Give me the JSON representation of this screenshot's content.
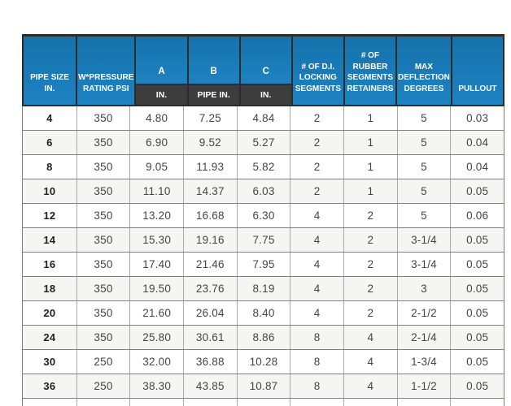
{
  "page": {
    "background": "#ffffff"
  },
  "table": {
    "colors": {
      "header_blue_top": "#1572ab",
      "header_blue_bottom": "#1e82c2",
      "header_dark": "#3d3d3d",
      "header_border": "#2c2c2c",
      "header_text": "#ffffff",
      "row_line": "#808080",
      "col_line": "#a9a9a9",
      "alt_row_bg": "#f5f5f4",
      "data_text": "#454545",
      "first_col_text": "#1f1f1f"
    },
    "columns": [
      {
        "id": "pipe-size",
        "lines": [
          "PIPE SIZE IN."
        ]
      },
      {
        "id": "pressure-rating",
        "lines": [
          "W*PRESSURE",
          "RATING PSI"
        ]
      },
      {
        "id": "a",
        "lines": [
          "A"
        ],
        "sub": "IN."
      },
      {
        "id": "b",
        "lines": [
          "B"
        ],
        "sub": "PIPE IN."
      },
      {
        "id": "c",
        "lines": [
          "C"
        ],
        "sub": "IN."
      },
      {
        "id": "di-locking-segments",
        "lines": [
          "# OF D.I.",
          "LOCKING",
          "SEGMENTS"
        ]
      },
      {
        "id": "rubber-segment-retainers",
        "lines": [
          "# OF RUBBER",
          "SEGMENTS",
          "RETAINERS"
        ]
      },
      {
        "id": "max-deflection-degrees",
        "lines": [
          "MAX",
          "DEFLECTION",
          "DEGREES"
        ]
      },
      {
        "id": "pullout",
        "lines": [
          "PULLOUT"
        ]
      }
    ],
    "rows": [
      [
        "4",
        "350",
        "4.80",
        "7.25",
        "4.84",
        "2",
        "1",
        "5",
        "0.03"
      ],
      [
        "6",
        "350",
        "6.90",
        "9.52",
        "5.27",
        "2",
        "1",
        "5",
        "0.04"
      ],
      [
        "8",
        "350",
        "9.05",
        "11.93",
        "5.82",
        "2",
        "1",
        "5",
        "0.04"
      ],
      [
        "10",
        "350",
        "11.10",
        "14.37",
        "6.03",
        "2",
        "1",
        "5",
        "0.05"
      ],
      [
        "12",
        "350",
        "13.20",
        "16.68",
        "6.30",
        "4",
        "2",
        "5",
        "0.06"
      ],
      [
        "14",
        "350",
        "15.30",
        "19.16",
        "7.75",
        "4",
        "2",
        "3-1/4",
        "0.05"
      ],
      [
        "16",
        "350",
        "17.40",
        "21.46",
        "7.95",
        "4",
        "2",
        "3-1/4",
        "0.05"
      ],
      [
        "18",
        "350",
        "19.50",
        "23.76",
        "8.19",
        "4",
        "2",
        "3",
        "0.05"
      ],
      [
        "20",
        "350",
        "21.60",
        "26.04",
        "8.40",
        "4",
        "2",
        "2-1/2",
        "0.05"
      ],
      [
        "24",
        "350",
        "25.80",
        "30.61",
        "8.86",
        "8",
        "4",
        "2-1/4",
        "0.05"
      ],
      [
        "30",
        "250",
        "32.00",
        "36.88",
        "10.28",
        "8",
        "4",
        "1-3/4",
        "0.05"
      ],
      [
        "36",
        "250",
        "38.30",
        "43.85",
        "10.87",
        "8",
        "4",
        "1-1/2",
        "0.05"
      ]
    ]
  }
}
